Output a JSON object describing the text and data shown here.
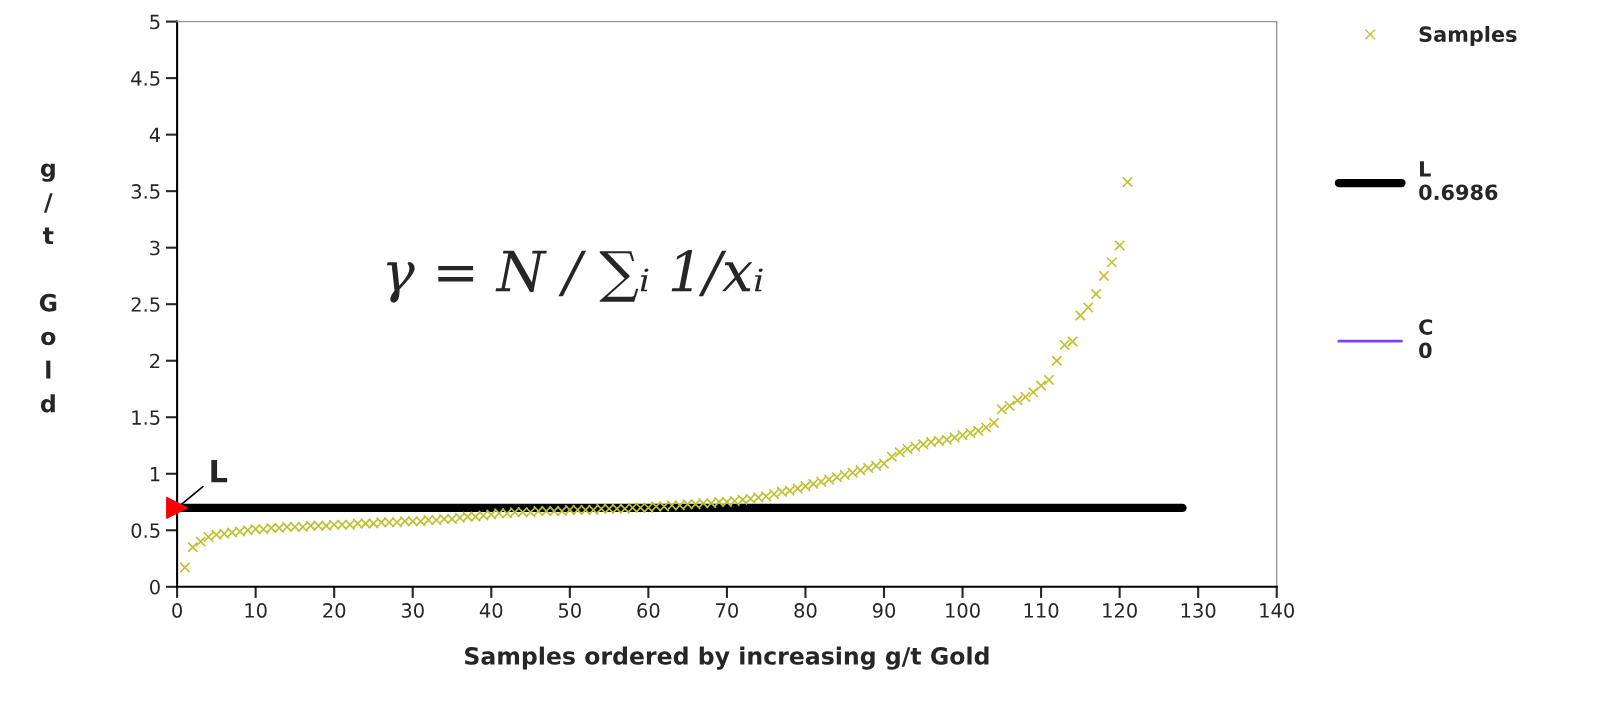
{
  "chart_data": {
    "type": "scatter",
    "xlabel": "Samples ordered by increasing g/t Gold",
    "ylabel": "g/t Gold",
    "xlim": [
      0,
      140
    ],
    "xticks": [
      0,
      10,
      20,
      30,
      40,
      50,
      60,
      70,
      80,
      90,
      100,
      110,
      120,
      130,
      140
    ],
    "ylim": [
      0,
      5
    ],
    "yticks": [
      0,
      0.5,
      1,
      1.5,
      2,
      2.5,
      3,
      3.5,
      4,
      4.5,
      5
    ],
    "grid": false,
    "legend": "right",
    "annotations": [
      {
        "text": "L",
        "x": 0,
        "y": 0.6986
      },
      "γ = N / ∑ᵢ 1/xᵢ"
    ],
    "series": [
      {
        "name": "Samples",
        "marker": "cross",
        "color": "#c0c030",
        "x": [
          1,
          2,
          3,
          4,
          5,
          6,
          7,
          8,
          9,
          10,
          11,
          12,
          13,
          14,
          15,
          16,
          17,
          18,
          19,
          20,
          21,
          22,
          23,
          24,
          25,
          26,
          27,
          28,
          29,
          30,
          31,
          32,
          33,
          34,
          35,
          36,
          37,
          38,
          39,
          40,
          41,
          42,
          43,
          44,
          45,
          46,
          47,
          48,
          49,
          50,
          51,
          52,
          53,
          54,
          55,
          56,
          57,
          58,
          59,
          60,
          61,
          62,
          63,
          64,
          65,
          66,
          67,
          68,
          69,
          70,
          71,
          72,
          73,
          74,
          75,
          76,
          77,
          78,
          79,
          80,
          81,
          82,
          83,
          84,
          85,
          86,
          87,
          88,
          89,
          90,
          91,
          92,
          93,
          94,
          95,
          96,
          97,
          98,
          99,
          100,
          101,
          102,
          103,
          104,
          105,
          106,
          107,
          108,
          109,
          110,
          111,
          112,
          113,
          114,
          115,
          116,
          117,
          118,
          119,
          120,
          121
        ],
        "values": [
          0.17,
          0.35,
          0.4,
          0.44,
          0.46,
          0.47,
          0.48,
          0.49,
          0.5,
          0.51,
          0.51,
          0.52,
          0.52,
          0.53,
          0.53,
          0.53,
          0.54,
          0.54,
          0.54,
          0.55,
          0.55,
          0.55,
          0.56,
          0.56,
          0.56,
          0.57,
          0.57,
          0.57,
          0.58,
          0.58,
          0.58,
          0.59,
          0.59,
          0.6,
          0.6,
          0.61,
          0.62,
          0.62,
          0.63,
          0.64,
          0.65,
          0.65,
          0.66,
          0.66,
          0.66,
          0.67,
          0.67,
          0.67,
          0.67,
          0.68,
          0.68,
          0.68,
          0.68,
          0.69,
          0.69,
          0.69,
          0.69,
          0.7,
          0.7,
          0.7,
          0.71,
          0.71,
          0.72,
          0.72,
          0.73,
          0.73,
          0.74,
          0.74,
          0.75,
          0.75,
          0.76,
          0.77,
          0.78,
          0.79,
          0.8,
          0.82,
          0.84,
          0.85,
          0.87,
          0.89,
          0.91,
          0.93,
          0.95,
          0.97,
          0.99,
          1.01,
          1.03,
          1.05,
          1.07,
          1.09,
          1.15,
          1.19,
          1.22,
          1.24,
          1.26,
          1.28,
          1.29,
          1.3,
          1.32,
          1.34,
          1.36,
          1.38,
          1.41,
          1.45,
          1.57,
          1.6,
          1.65,
          1.68,
          1.72,
          1.78,
          1.83,
          2.0,
          2.14,
          2.17,
          2.4,
          2.47,
          2.59,
          2.75,
          2.87,
          3.02,
          3.58
        ]
      },
      {
        "name": "L\n0.6986",
        "type": "line",
        "color": "#000000",
        "x": [
          0,
          128
        ],
        "values": [
          0.6986,
          0.6986
        ]
      },
      {
        "name": "C\n0",
        "type": "line",
        "color": "#8040ff",
        "values": [
          null
        ]
      }
    ]
  }
}
